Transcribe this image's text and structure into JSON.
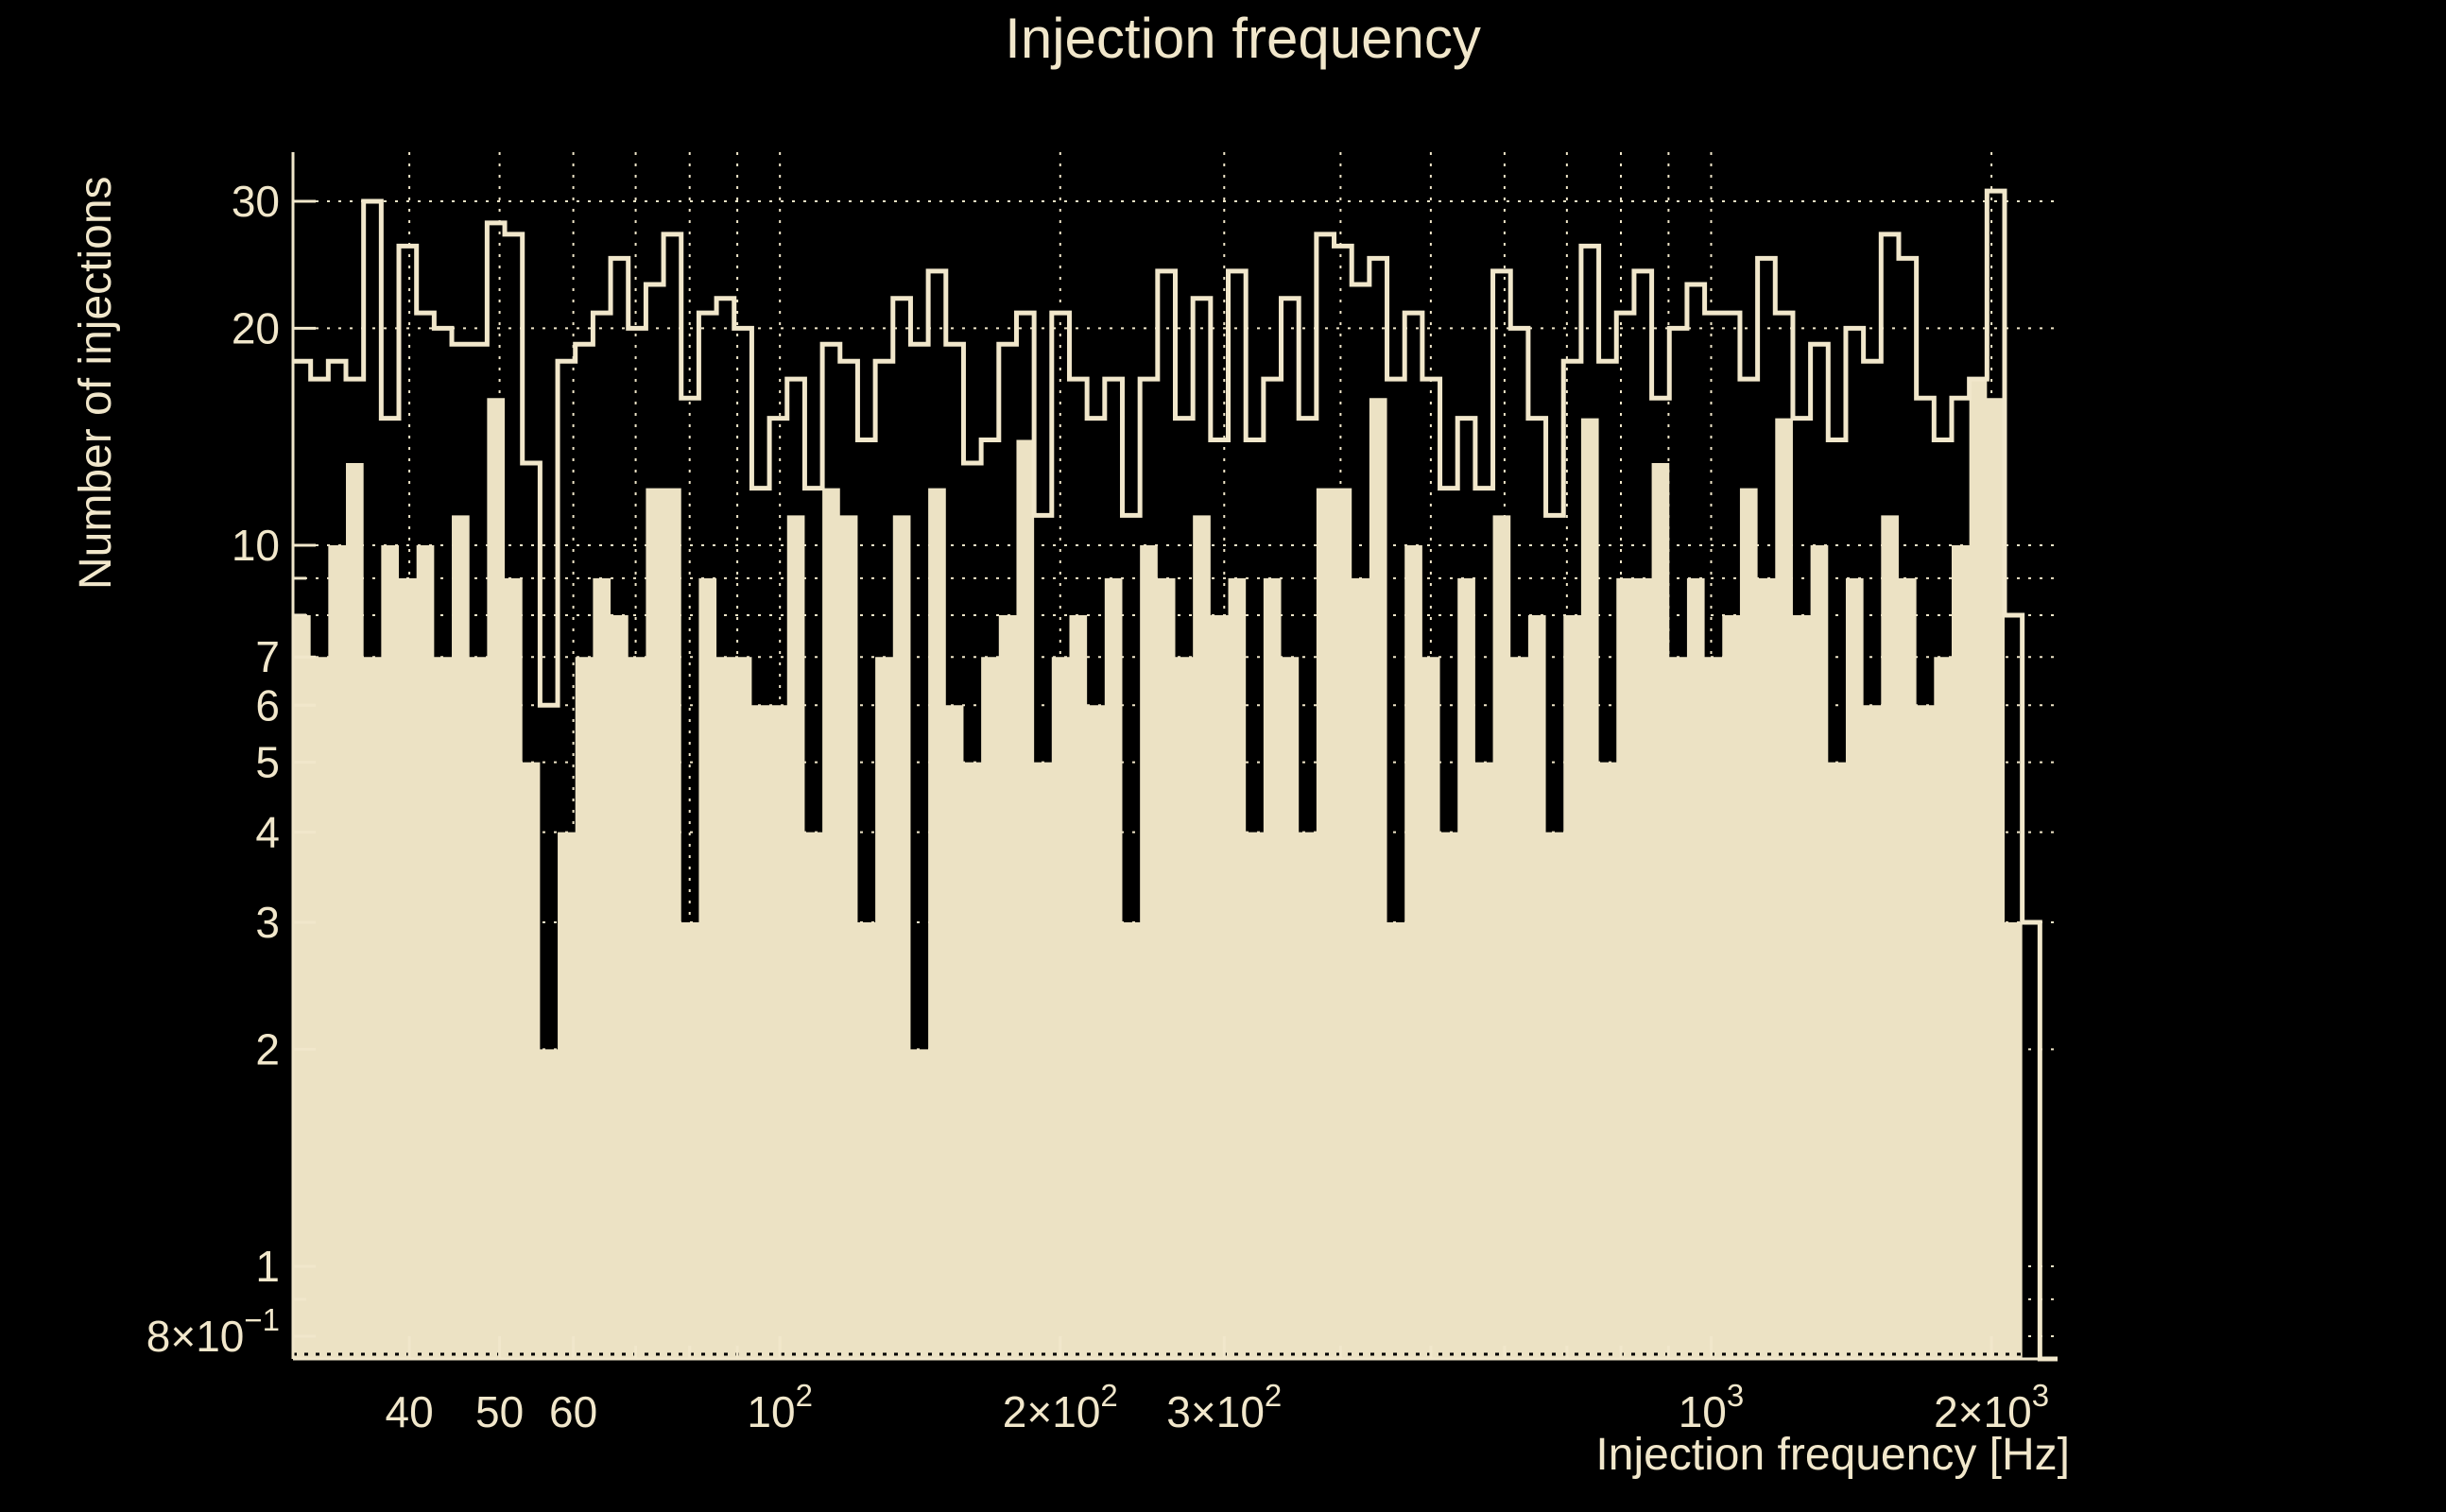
{
  "window": {
    "background": "#000000"
  },
  "colors": {
    "accent_text": "#f1e7cb",
    "hist_fill": "#ece2c4",
    "hist_line": "#f1e7cb",
    "grid": "#efe5c8",
    "axis": "#f1e7cb",
    "bottom_dark_dots": "#000000"
  },
  "chart_data": {
    "type": "bar",
    "subtype": "step-histograms-log-log",
    "title": "Injection frequency",
    "xlabel": "Injection frequency [Hz]",
    "ylabel": "Number of injections",
    "x_scale": "log",
    "y_scale": "log",
    "x_range_hz": [
      30,
      2355
    ],
    "y_range": [
      0.74,
      35
    ],
    "grid": "dotted",
    "bins": {
      "count": 100,
      "spacing": "log",
      "min_hz": 30,
      "max_hz": 2355
    },
    "series": [
      {
        "name": "injections filled histogram",
        "style": "filled",
        "values": [
          8,
          7,
          10,
          13,
          7,
          10,
          9,
          10,
          7,
          11,
          7,
          16,
          9,
          5,
          2,
          4,
          7,
          9,
          8,
          7,
          12,
          12,
          3,
          9,
          7,
          7,
          6,
          6,
          11,
          4,
          12,
          11,
          3,
          7,
          11,
          2,
          12,
          6,
          5,
          7,
          8,
          14,
          5,
          7,
          8,
          6,
          9,
          3,
          10,
          9,
          7,
          11,
          8,
          9,
          4,
          9,
          7,
          4,
          12,
          12,
          9,
          16,
          3,
          10,
          7,
          4,
          9,
          5,
          11,
          7,
          8,
          4,
          8,
          15,
          5,
          9,
          9,
          13,
          7,
          9,
          7,
          8,
          12,
          9,
          15,
          8,
          10,
          5,
          9,
          6,
          11,
          9,
          6,
          7,
          10,
          17,
          16,
          3,
          0,
          0
        ]
      },
      {
        "name": "injections outline histogram",
        "style": "step-outline",
        "values": [
          18,
          17,
          18,
          17,
          30,
          15,
          26,
          21,
          20,
          19,
          19,
          28,
          27,
          13,
          6,
          18,
          19,
          21,
          25,
          20,
          23,
          27,
          16,
          21,
          22,
          20,
          12,
          15,
          17,
          12,
          19,
          18,
          14,
          18,
          22,
          19,
          24,
          19,
          13,
          14,
          19,
          21,
          11,
          21,
          17,
          15,
          17,
          11,
          17,
          24,
          15,
          22,
          14,
          24,
          14,
          17,
          22,
          15,
          27,
          26,
          23,
          25,
          17,
          21,
          17,
          12,
          15,
          12,
          24,
          20,
          15,
          11,
          18,
          26,
          18,
          21,
          24,
          16,
          20,
          23,
          21,
          21,
          17,
          25,
          21,
          15,
          19,
          14,
          20,
          18,
          27,
          25,
          16,
          14,
          16,
          17,
          31,
          8,
          3,
          0
        ]
      }
    ],
    "x_ticks": [
      {
        "value": 40,
        "label": "40"
      },
      {
        "value": 50,
        "label": "50"
      },
      {
        "value": 60,
        "label": "60"
      },
      {
        "value": 100,
        "base": "10",
        "exp": "2"
      },
      {
        "value": 200,
        "pre": "2×",
        "base": "10",
        "exp": "2"
      },
      {
        "value": 300,
        "pre": "3×",
        "base": "10",
        "exp": "2"
      },
      {
        "value": 1000,
        "base": "10",
        "exp": "3"
      },
      {
        "value": 2000,
        "pre": "2×",
        "base": "10",
        "exp": "3"
      }
    ],
    "y_ticks": [
      {
        "value": 30,
        "label": "30"
      },
      {
        "value": 20,
        "label": "20"
      },
      {
        "value": 10,
        "label": "10"
      },
      {
        "value": 7,
        "label": "7"
      },
      {
        "value": 6,
        "label": "6"
      },
      {
        "value": 5,
        "label": "5"
      },
      {
        "value": 4,
        "label": "4"
      },
      {
        "value": 3,
        "label": "3"
      },
      {
        "value": 2,
        "label": "2"
      },
      {
        "value": 1,
        "label": "1"
      },
      {
        "value": 0.8,
        "pre": "8×",
        "base": "10",
        "exp": "−1"
      }
    ],
    "x_gridlines": [
      40,
      50,
      60,
      70,
      80,
      90,
      100,
      200,
      300,
      400,
      500,
      600,
      700,
      800,
      900,
      1000,
      2000
    ],
    "y_gridlines": [
      0.8,
      0.9,
      1,
      2,
      3,
      4,
      5,
      6,
      7,
      8,
      9,
      10,
      20,
      30
    ]
  }
}
